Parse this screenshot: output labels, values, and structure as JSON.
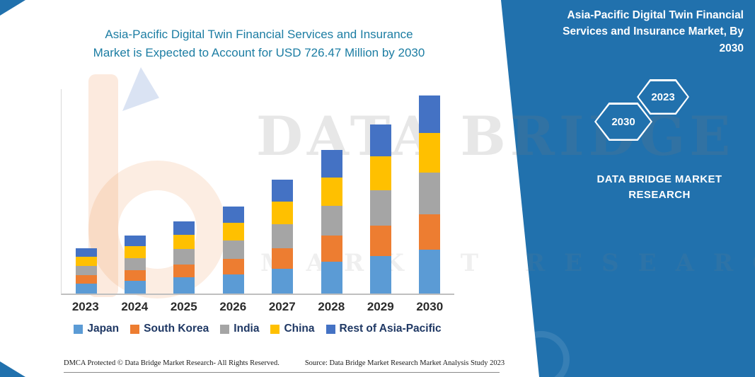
{
  "header": {
    "title_line1": "Asia-Pacific Digital Twin Financial Services and Insurance",
    "title_line2": "Market is Expected to Account for USD 726.47 Million by 2030"
  },
  "watermark": {
    "line1": "DATA BRIDGE",
    "line2": "MARKET RESEARCH"
  },
  "chart_data": {
    "type": "bar",
    "stacked": true,
    "title": "Asia-Pacific Digital Twin Financial Services and Insurance Market is Expected to Account for USD 726.47 Million by 2030",
    "unit": "USD Million",
    "values_estimated": true,
    "grid": false,
    "legend_position": "bottom",
    "ylim": [
      0,
      800
    ],
    "categories": [
      "2023",
      "2024",
      "2025",
      "2026",
      "2027",
      "2028",
      "2029",
      "2030"
    ],
    "series": [
      {
        "name": "Japan",
        "color": "#5B9BD5",
        "values": [
          36,
          47,
          59,
          70,
          92,
          116,
          137,
          160
        ]
      },
      {
        "name": "South Korea",
        "color": "#ED7D31",
        "values": [
          30,
          39,
          48,
          57,
          75,
          95,
          112,
          131
        ]
      },
      {
        "name": "India",
        "color": "#A5A5A5",
        "values": [
          34,
          45,
          56,
          67,
          88,
          110,
          131,
          152
        ]
      },
      {
        "name": "China",
        "color": "#FFC000",
        "values": [
          33,
          43,
          53,
          64,
          84,
          105,
          124,
          145
        ]
      },
      {
        "name": "Rest of Asia-Pacific",
        "color": "#4472C4",
        "values": [
          31,
          40,
          50,
          60,
          80,
          100,
          118,
          138
        ]
      }
    ],
    "totals": [
      164,
      214,
      266,
      318,
      419,
      526,
      622,
      726.47
    ]
  },
  "side_panel": {
    "panel_color": "#2171AD",
    "title": "Asia-Pacific Digital Twin Financial Services and Insurance Market, By 2030",
    "hexagon_left": "2030",
    "hexagon_right": "2023",
    "brand_line1": "DATA BRIDGE MARKET",
    "brand_line2": "RESEARCH"
  },
  "footer": {
    "left": "DMCA Protected © Data Bridge Market Research-  All Rights Reserved.",
    "source": "Source: Data Bridge Market Research  Market Analysis Study 2023"
  }
}
